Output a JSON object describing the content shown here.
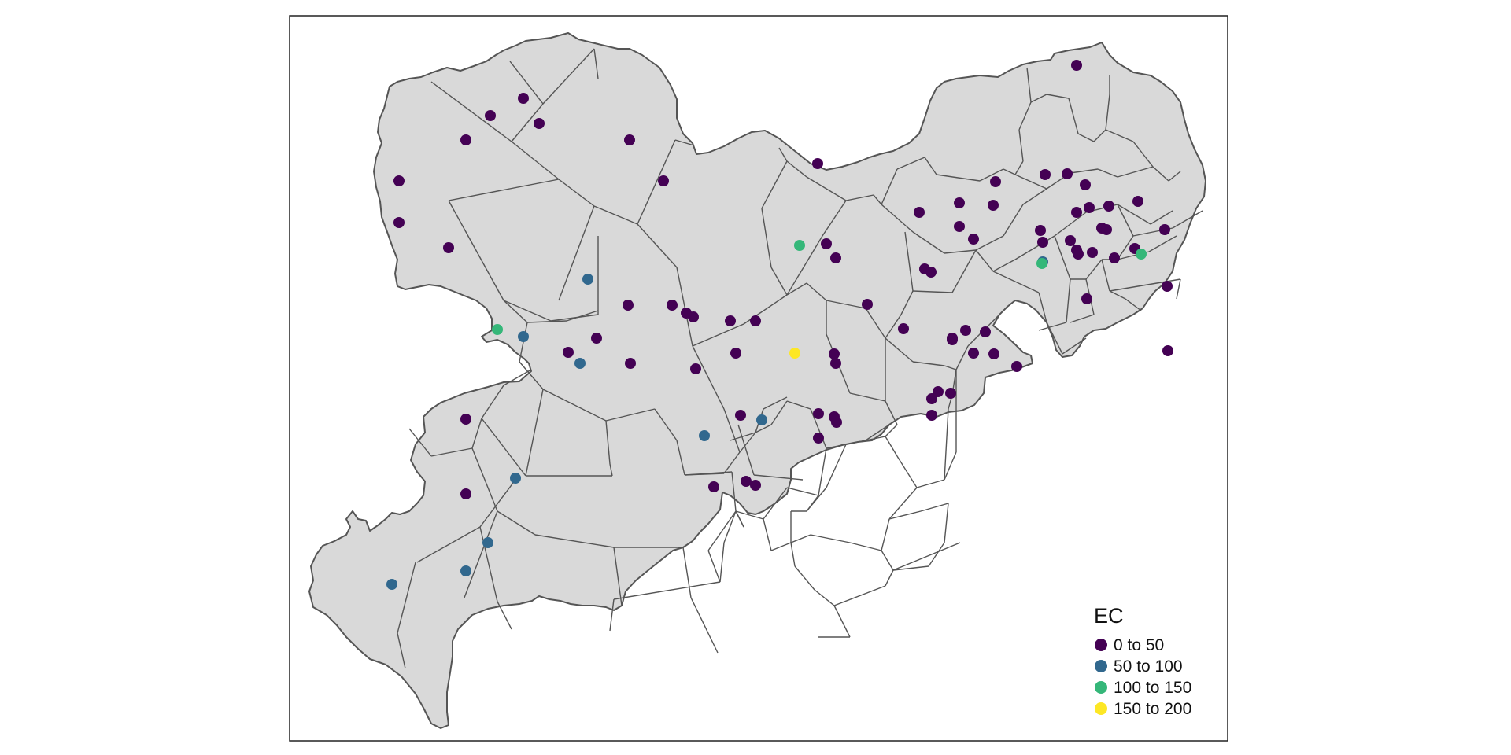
{
  "legend": {
    "title": "EC",
    "classes": [
      {
        "label": "0 to 50",
        "color": "#440154"
      },
      {
        "label": "50 to 100",
        "color": "#31688e"
      },
      {
        "label": "100 to 150",
        "color": "#35b779"
      },
      {
        "label": "150 to 200",
        "color": "#fde725"
      }
    ]
  },
  "region_fill_color": "#d9d9d9",
  "boundary_color": "#555555",
  "point_classes": [
    0,
    0,
    0,
    0,
    0,
    0,
    0,
    0,
    0,
    0,
    0,
    0,
    0,
    0,
    0,
    0,
    0,
    0,
    0,
    0,
    0,
    0,
    0,
    0,
    0,
    0,
    0,
    0,
    0,
    0,
    0,
    0,
    0,
    0,
    0,
    0,
    0,
    0,
    0,
    0,
    0,
    0,
    0,
    0,
    0,
    0,
    0,
    0,
    0,
    0,
    0,
    0,
    0,
    0,
    0,
    0,
    0,
    0,
    0,
    0,
    0,
    0,
    0,
    0,
    0,
    0,
    0,
    0,
    0,
    0,
    0,
    0,
    0,
    0,
    0,
    0,
    1,
    1,
    1,
    1,
    1,
    1,
    1,
    1,
    1,
    1,
    2,
    2,
    2,
    2,
    3
  ]
}
